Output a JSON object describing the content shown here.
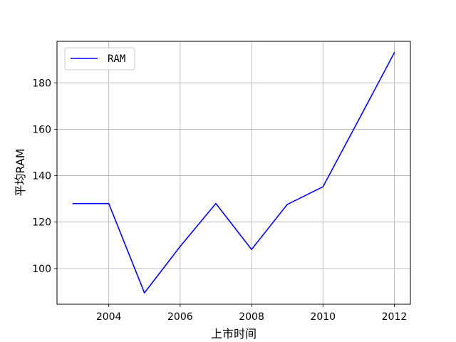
{
  "chart_data": {
    "type": "line",
    "title": "",
    "xlabel": "上市时间",
    "ylabel": "平均RAM",
    "x": [
      2003,
      2004,
      2005,
      2006,
      2007,
      2008,
      2009,
      2010,
      2011,
      2012
    ],
    "series": [
      {
        "name": "RAM",
        "color": "#0000ff",
        "values": [
          128,
          128,
          89.5,
          109.5,
          128,
          108.2,
          127.6,
          135.2,
          164,
          193
        ]
      }
    ],
    "xlim": [
      2002.55,
      2012.45
    ],
    "ylim": [
      84.6,
      197.9
    ],
    "xticks": [
      2004,
      2006,
      2008,
      2010,
      2012
    ],
    "xtick_labels": [
      "2004",
      "2006",
      "2008",
      "2010",
      "2012"
    ],
    "yticks": [
      100,
      120,
      140,
      160,
      180
    ],
    "ytick_labels": [
      "100",
      "120",
      "140",
      "160",
      "180"
    ],
    "grid": true,
    "legend_position": "upper-left"
  }
}
